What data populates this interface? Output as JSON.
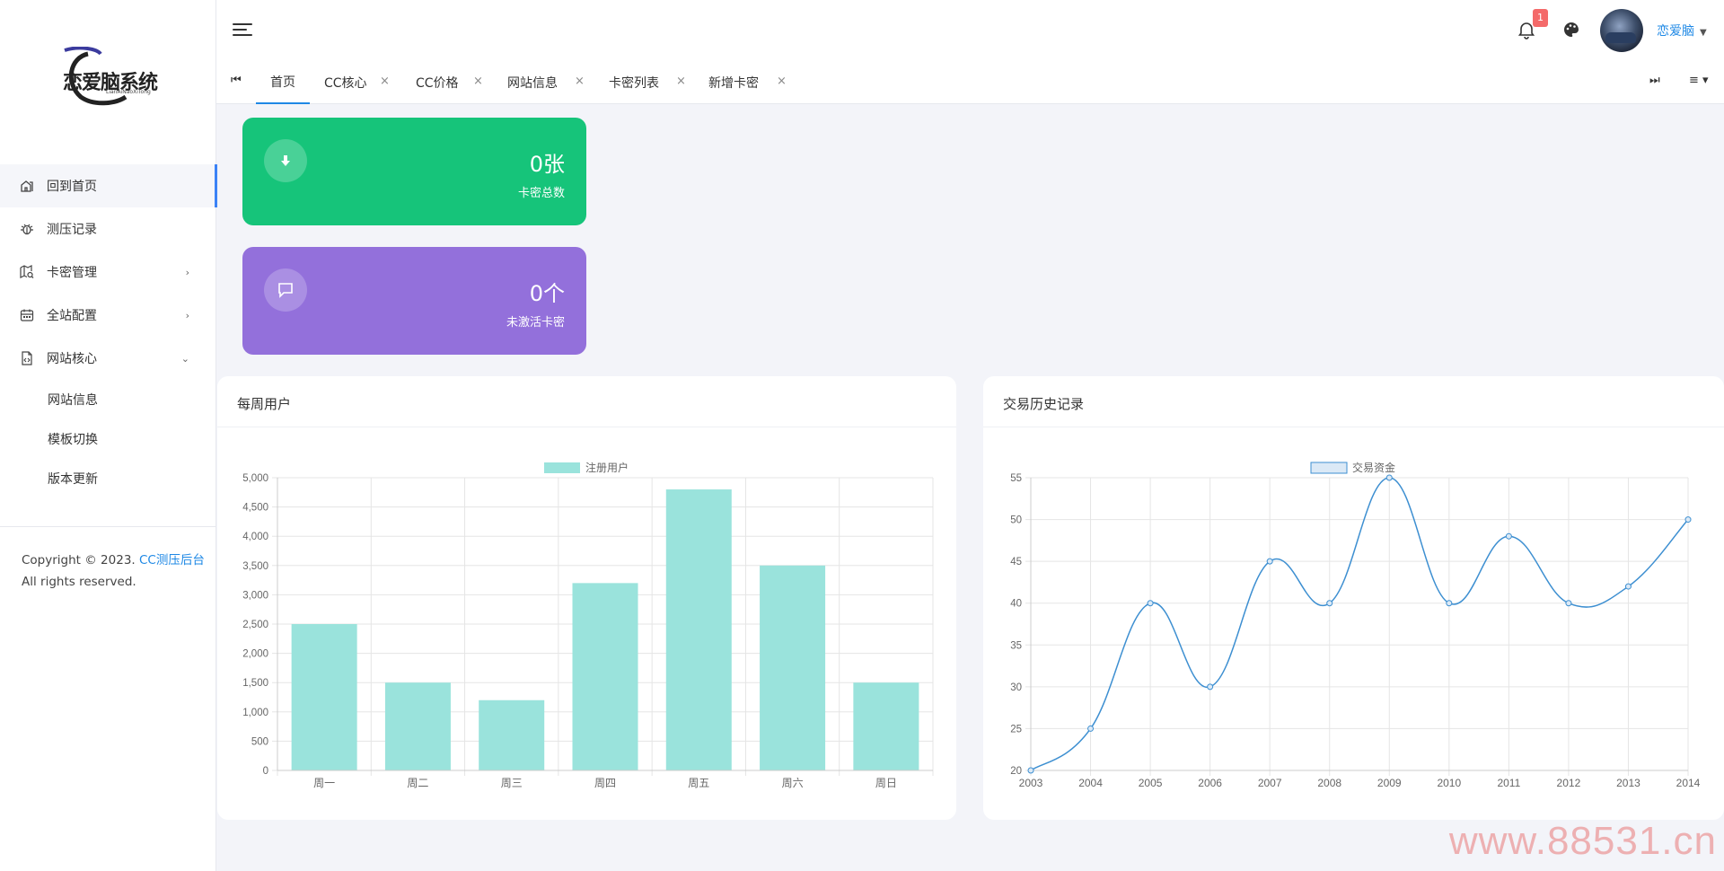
{
  "brand": {
    "logo_text": "恋爱脑系统",
    "logo_sub": "LianAiNaoXiTong"
  },
  "sidebar": {
    "items": [
      {
        "label": "回到首页",
        "icon": "home-icon",
        "active": true
      },
      {
        "label": "测压记录",
        "icon": "bug-icon"
      },
      {
        "label": "卡密管理",
        "icon": "map-search-icon",
        "arrow": "›"
      },
      {
        "label": "全站配置",
        "icon": "calendar-icon",
        "arrow": "›"
      },
      {
        "label": "网站核心",
        "icon": "file-code-icon",
        "arrow": "⌄"
      }
    ],
    "subitems": [
      {
        "label": "网站信息"
      },
      {
        "label": "模板切换"
      },
      {
        "label": "版本更新"
      }
    ],
    "copyright_prefix": "Copyright © 2023.",
    "copyright_link": "CC测压后台",
    "copyright_line2": "All rights reserved."
  },
  "topbar": {
    "notification_count": "1",
    "username": "恋爱脑"
  },
  "tabs": {
    "first_btn": "⏮",
    "last_btn": "⏭",
    "menu_btn": "≡ ▾",
    "items": [
      {
        "label": "首页",
        "active": true
      },
      {
        "label": "CC核心",
        "close": "×"
      },
      {
        "label": "CC价格",
        "close": "×"
      },
      {
        "label": "网站信息",
        "close": "×"
      },
      {
        "label": "卡密列表",
        "close": "×"
      },
      {
        "label": "新增卡密",
        "close": "×"
      }
    ]
  },
  "stats": [
    {
      "value": "0张",
      "label": "卡密总数",
      "icon": "arrow-down-icon",
      "color": "#16c47a"
    },
    {
      "value": "0个",
      "label": "未激活卡密",
      "icon": "chat-icon",
      "color": "#9370db"
    }
  ],
  "cards": {
    "weekly_title": "每周用户",
    "trade_title": "交易历史记录"
  },
  "chart_data": [
    {
      "type": "bar",
      "title": "",
      "legend": [
        "注册用户"
      ],
      "legend_position": "top-center",
      "categories": [
        "周一",
        "周二",
        "周三",
        "周四",
        "周五",
        "周六",
        "周日"
      ],
      "series": [
        {
          "name": "注册用户",
          "values": [
            2500,
            1500,
            1200,
            3200,
            4800,
            3500,
            1500
          ]
        }
      ],
      "ylim": [
        0,
        5000
      ],
      "yticks": [
        "0",
        "500",
        "1,000",
        "1,500",
        "2,000",
        "2,500",
        "3,000",
        "3,500",
        "4,000",
        "4,500",
        "5,000"
      ],
      "grid": true,
      "color": "#9ae3dc"
    },
    {
      "type": "line",
      "title": "",
      "legend": [
        "交易资金"
      ],
      "legend_position": "top-center",
      "x": [
        "2003",
        "2004",
        "2005",
        "2006",
        "2007",
        "2008",
        "2009",
        "2010",
        "2011",
        "2012",
        "2013",
        "2014"
      ],
      "series": [
        {
          "name": "交易资金",
          "values": [
            20,
            25,
            40,
            30,
            45,
            40,
            55,
            40,
            48,
            40,
            42,
            50
          ]
        }
      ],
      "ylim": [
        20,
        55
      ],
      "yticks": [
        "20",
        "25",
        "30",
        "35",
        "40",
        "45",
        "50",
        "55"
      ],
      "grid": true,
      "color": "#3d8fd1"
    }
  ],
  "watermark": "www.88531.cn"
}
